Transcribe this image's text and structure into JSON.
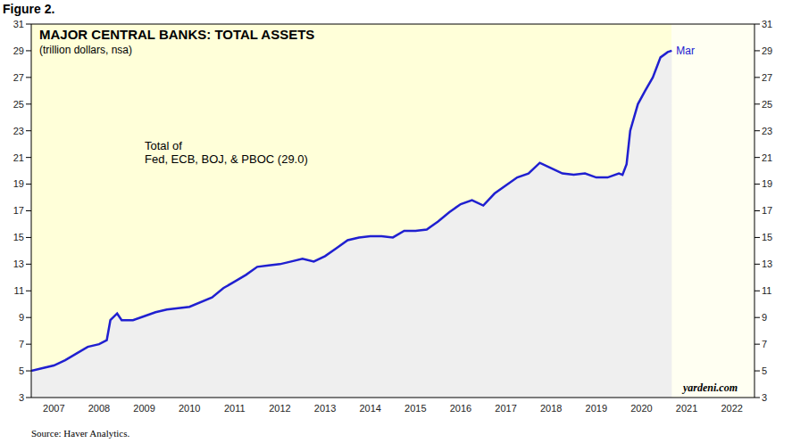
{
  "chart_data": {
    "type": "area",
    "figure_label": "Figure 2.",
    "title": "MAJOR CENTRAL BANKS: TOTAL ASSETS",
    "subtitle": "(trillion dollars, nsa)",
    "annotation": [
      "Total of",
      "Fed, ECB, BOJ, & PBOC (29.0)"
    ],
    "end_label": "Mar",
    "watermark": "yardeni.com",
    "source": "Source: Haver Analytics.",
    "color": "#2020d0",
    "grid": false,
    "x": [
      2007.0,
      2007.25,
      2007.5,
      2007.75,
      2008.0,
      2008.25,
      2008.5,
      2008.67,
      2008.75,
      2008.9,
      2009.0,
      2009.25,
      2009.5,
      2009.75,
      2010.0,
      2010.5,
      2011.0,
      2011.25,
      2011.5,
      2011.75,
      2012.0,
      2012.25,
      2012.5,
      2012.75,
      2013.0,
      2013.25,
      2013.5,
      2013.75,
      2014.0,
      2014.25,
      2014.5,
      2014.75,
      2015.0,
      2015.25,
      2015.5,
      2015.75,
      2016.0,
      2016.25,
      2016.5,
      2016.75,
      2017.0,
      2017.25,
      2017.5,
      2017.75,
      2018.0,
      2018.25,
      2018.5,
      2018.75,
      2019.0,
      2019.25,
      2019.5,
      2019.75,
      2020.0,
      2020.08,
      2020.17,
      2020.25,
      2020.42,
      2020.58,
      2020.75,
      2020.92,
      2021.08,
      2021.17
    ],
    "values": [
      5.0,
      5.2,
      5.4,
      5.8,
      6.3,
      6.8,
      7.0,
      7.3,
      8.8,
      9.3,
      8.8,
      8.8,
      9.1,
      9.4,
      9.6,
      9.8,
      10.5,
      11.2,
      11.7,
      12.2,
      12.8,
      12.9,
      13.0,
      13.2,
      13.4,
      13.2,
      13.6,
      14.2,
      14.8,
      15.0,
      15.1,
      15.1,
      15.0,
      15.5,
      15.5,
      15.6,
      16.2,
      16.9,
      17.5,
      17.8,
      17.4,
      18.3,
      18.9,
      19.5,
      19.8,
      20.6,
      20.2,
      19.8,
      19.7,
      19.8,
      19.5,
      19.5,
      19.8,
      19.7,
      20.5,
      23.0,
      25.0,
      26.0,
      27.0,
      28.5,
      28.9,
      29.0
    ],
    "xlim": [
      2007,
      2023
    ],
    "xticks": [
      {
        "value": 2007.5,
        "label": "2007"
      },
      {
        "value": 2008.5,
        "label": "2008"
      },
      {
        "value": 2009.5,
        "label": "2009"
      },
      {
        "value": 2010.5,
        "label": "2010"
      },
      {
        "value": 2011.5,
        "label": "2011"
      },
      {
        "value": 2012.5,
        "label": "2012"
      },
      {
        "value": 2013.5,
        "label": "2013"
      },
      {
        "value": 2014.5,
        "label": "2014"
      },
      {
        "value": 2015.5,
        "label": "2015"
      },
      {
        "value": 2016.5,
        "label": "2016"
      },
      {
        "value": 2017.5,
        "label": "2017"
      },
      {
        "value": 2018.5,
        "label": "2018"
      },
      {
        "value": 2019.5,
        "label": "2019"
      },
      {
        "value": 2020.5,
        "label": "2020"
      },
      {
        "value": 2021.5,
        "label": "2021"
      },
      {
        "value": 2022.5,
        "label": "2022"
      }
    ],
    "ylim": [
      3,
      31
    ],
    "yticks": [
      3,
      5,
      7,
      9,
      11,
      13,
      15,
      17,
      19,
      21,
      23,
      25,
      27,
      29,
      31
    ]
  }
}
